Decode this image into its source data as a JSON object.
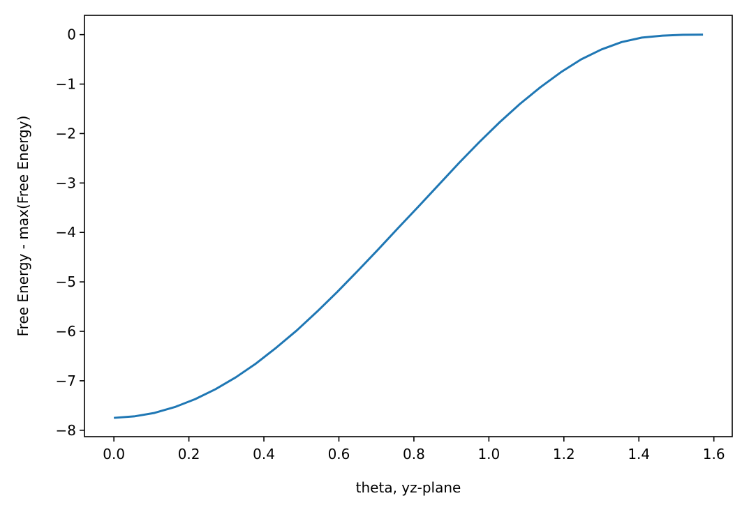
{
  "chart_data": {
    "type": "line",
    "title": "",
    "xlabel": "theta, yz-plane",
    "ylabel": "Free Energy - max(Free Energy)",
    "xlim": [
      -0.0785,
      1.649
    ],
    "ylim": [
      -8.13,
      0.39
    ],
    "xticks": [
      0.0,
      0.2,
      0.4,
      0.6,
      0.8,
      1.0,
      1.2,
      1.4,
      1.6
    ],
    "xtick_labels": [
      "0.0",
      "0.2",
      "0.4",
      "0.6",
      "0.8",
      "1.0",
      "1.2",
      "1.4",
      "1.6"
    ],
    "yticks": [
      0,
      -1,
      -2,
      -3,
      -4,
      -5,
      -6,
      -7,
      -8
    ],
    "ytick_labels": [
      "0",
      "−1",
      "−2",
      "−3",
      "−4",
      "−5",
      "−6",
      "−7",
      "−8"
    ],
    "grid": false,
    "series": [
      {
        "color": "#1f77b4",
        "x": [
          0.0,
          0.054,
          0.108,
          0.163,
          0.217,
          0.271,
          0.325,
          0.379,
          0.433,
          0.488,
          0.542,
          0.596,
          0.65,
          0.704,
          0.758,
          0.813,
          0.867,
          0.921,
          0.975,
          1.029,
          1.083,
          1.138,
          1.192,
          1.246,
          1.3,
          1.354,
          1.408,
          1.463,
          1.517,
          1.571
        ],
        "y": [
          -7.75,
          -7.72,
          -7.65,
          -7.53,
          -7.37,
          -7.17,
          -6.93,
          -6.65,
          -6.33,
          -5.98,
          -5.6,
          -5.2,
          -4.78,
          -4.35,
          -3.91,
          -3.47,
          -3.03,
          -2.59,
          -2.17,
          -1.77,
          -1.4,
          -1.06,
          -0.76,
          -0.5,
          -0.3,
          -0.15,
          -0.06,
          -0.02,
          -0.004,
          0.0
        ]
      }
    ]
  }
}
